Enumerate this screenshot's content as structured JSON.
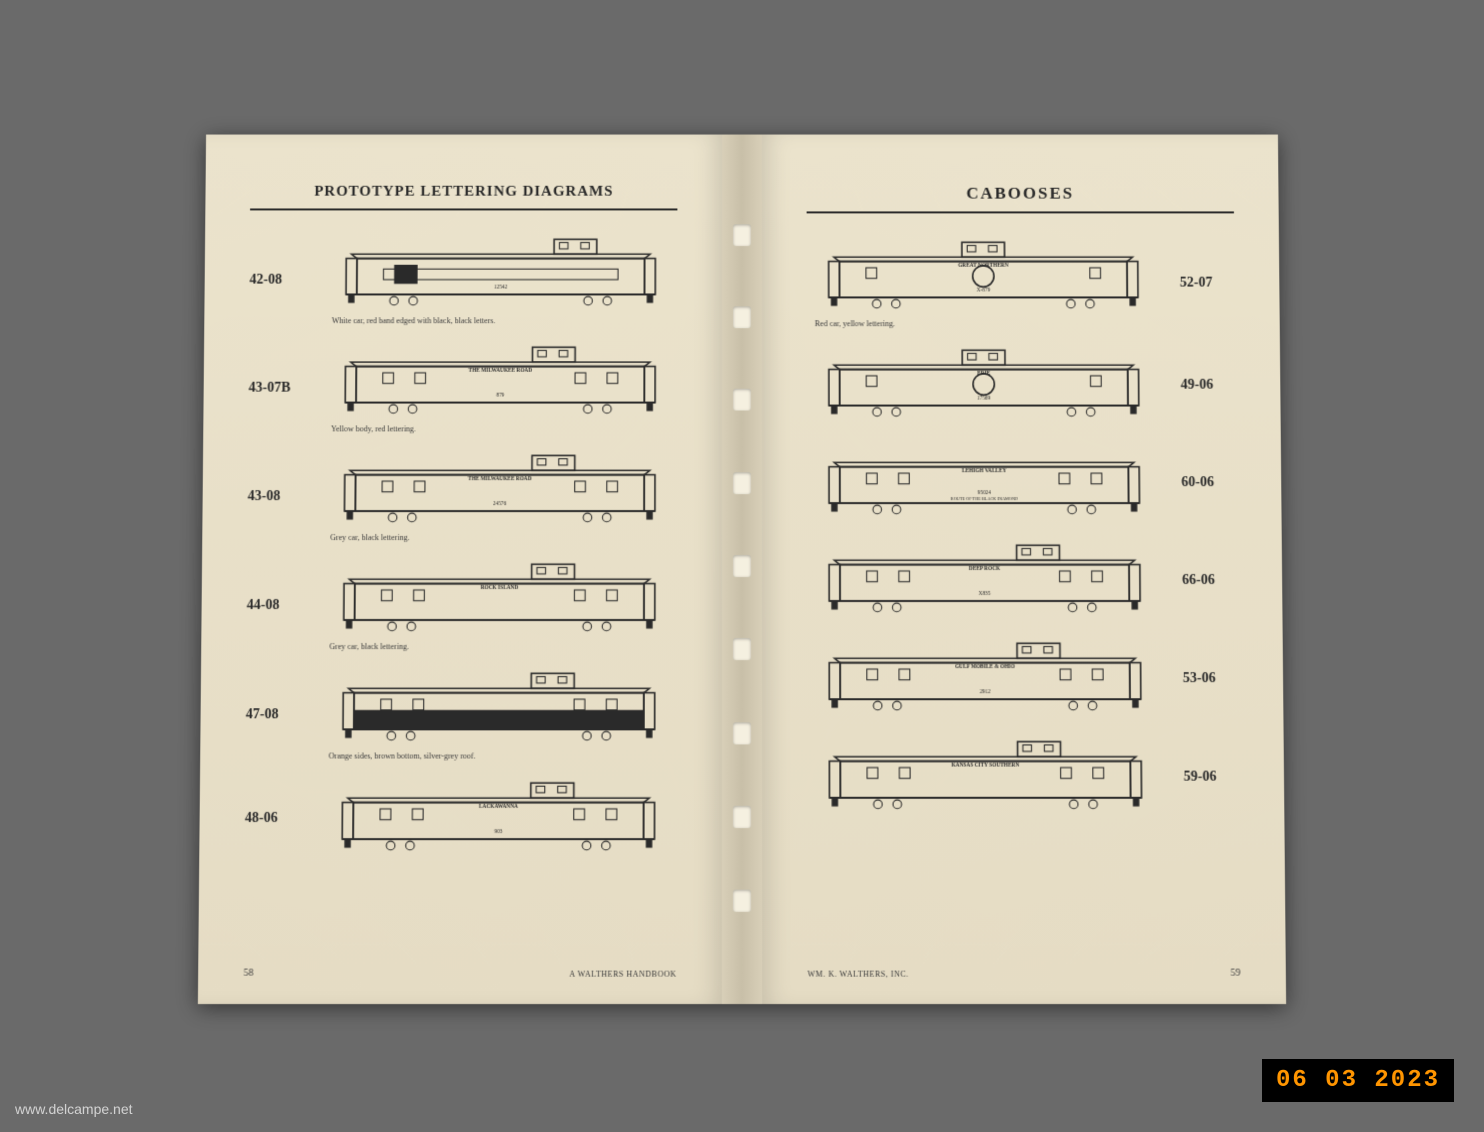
{
  "left_page": {
    "title": "PROTOTYPE LETTERING DIAGRAMS",
    "page_number": "58",
    "footer": "A WALTHERS HANDBOOK",
    "items": [
      {
        "code": "42-08",
        "caption": "White car, red band edged with black, black letters.",
        "road_name": "",
        "car_number": "12542",
        "style": "cupola-offset"
      },
      {
        "code": "43-07B",
        "caption": "Yellow body, red lettering.",
        "road_name": "THE MILWAUKEE ROAD",
        "car_number": "879",
        "style": "standard"
      },
      {
        "code": "43-08",
        "caption": "Grey car, black lettering.",
        "road_name": "THE MILWAUKEE ROAD",
        "car_number": "24576",
        "style": "standard"
      },
      {
        "code": "44-08",
        "caption": "Grey car, black lettering.",
        "road_name": "ROCK ISLAND",
        "car_number": "",
        "style": "standard"
      },
      {
        "code": "47-08",
        "caption": "Orange sides, brown bottom, silver-grey roof.",
        "road_name": "",
        "car_number": "",
        "style": "dark-bottom"
      },
      {
        "code": "48-06",
        "caption": "",
        "road_name": "LACKAWANNA",
        "car_number": "903",
        "style": "standard"
      }
    ]
  },
  "right_page": {
    "title": "CABOOSES",
    "page_number": "59",
    "footer": "WM. K. WALTHERS, INC.",
    "items": [
      {
        "code": "52-07",
        "caption": "Red car, yellow lettering.",
        "road_name": "GREAT NORTHERN",
        "car_number": "X-879",
        "style": "cupola-center-logo"
      },
      {
        "code": "49-06",
        "caption": "",
        "road_name": "ERIE",
        "car_number": "17569",
        "style": "cupola-center-logo"
      },
      {
        "code": "60-06",
        "caption": "",
        "road_name": "LEHIGH VALLEY",
        "car_number": "95024",
        "subtitle": "ROUTE OF THE BLACK DIAMOND",
        "style": "no-cupola"
      },
      {
        "code": "66-06",
        "caption": "",
        "road_name": "DEEP ROCK",
        "car_number": "X835",
        "style": "standard"
      },
      {
        "code": "53-06",
        "caption": "",
        "road_name": "GULF MOBILE & OHIO",
        "car_number": "2912",
        "style": "standard"
      },
      {
        "code": "59-06",
        "caption": "",
        "road_name": "KANSAS CITY SOUTHERN",
        "car_number": "",
        "style": "standard"
      }
    ]
  },
  "watermark": "www.delcampe.net",
  "datestamp": "06 03 2023",
  "colors": {
    "page_bg": "#e8dfc8",
    "ink": "#2a2a2a",
    "background": "#6a6a6a"
  }
}
